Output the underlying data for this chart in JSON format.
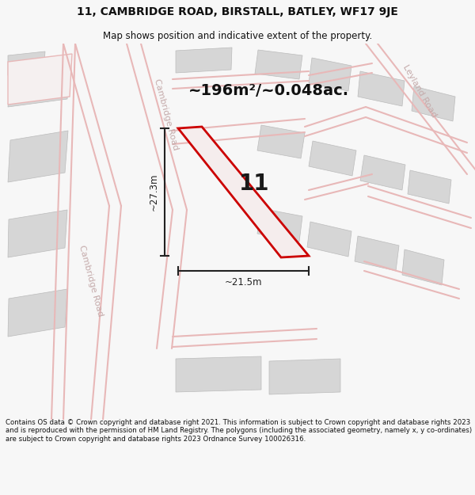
{
  "title": "11, CAMBRIDGE ROAD, BIRSTALL, BATLEY, WF17 9JE",
  "subtitle": "Map shows position and indicative extent of the property.",
  "area_label": "~196m²/~0.048ac.",
  "width_label": "~21.5m",
  "height_label": "~27.3m",
  "number_label": "11",
  "footer": "Contains OS data © Crown copyright and database right 2021. This information is subject to Crown copyright and database rights 2023 and is reproduced with the permission of HM Land Registry. The polygons (including the associated geometry, namely x, y co-ordinates) are subject to Crown copyright and database rights 2023 Ordnance Survey 100026316.",
  "bg_color": "#f7f7f7",
  "map_bg": "#f0efef",
  "road_color": "#e8b8b8",
  "building_color": "#d6d6d6",
  "building_edge": "#bbbbbb",
  "highlight_color": "#cc0000",
  "highlight_fill": "#f5eded",
  "road_label_color": "#c4aaaa",
  "dim_color": "#222222",
  "title_color": "#111111",
  "footer_color": "#111111"
}
